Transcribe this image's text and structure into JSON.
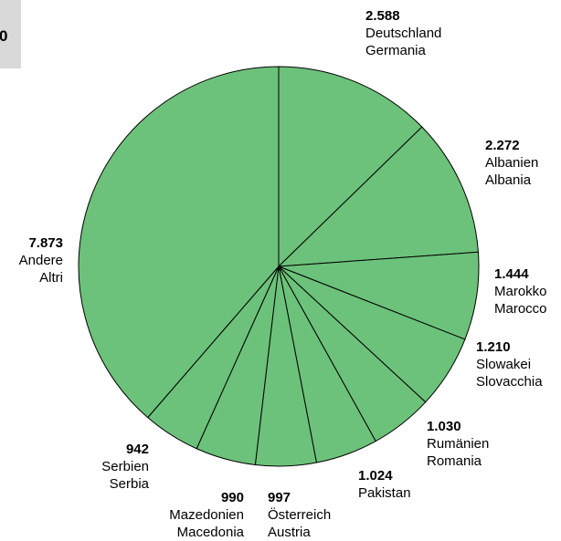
{
  "corner_badge": "0",
  "chart_data": {
    "type": "pie",
    "title": "",
    "start_angle_deg": 0,
    "direction": "clockwise",
    "slice_color": "#6cc27a",
    "stroke_color": "#000000",
    "slices": [
      {
        "value_label": "2.588",
        "value": 2588,
        "label_de": "Deutschland",
        "label_it": "Germania"
      },
      {
        "value_label": "2.272",
        "value": 2272,
        "label_de": "Albanien",
        "label_it": "Albania"
      },
      {
        "value_label": "1.444",
        "value": 1444,
        "label_de": "Marokko",
        "label_it": "Marocco"
      },
      {
        "value_label": "1.210",
        "value": 1210,
        "label_de": "Slowakei",
        "label_it": "Slovacchia"
      },
      {
        "value_label": "1.030",
        "value": 1030,
        "label_de": "Rumänien",
        "label_it": "Romania"
      },
      {
        "value_label": "1.024",
        "value": 1024,
        "label_de": "Pakistan",
        "label_it": ""
      },
      {
        "value_label": "997",
        "value": 997,
        "label_de": "Österreich",
        "label_it": "Austria"
      },
      {
        "value_label": "990",
        "value": 990,
        "label_de": "Mazedonien",
        "label_it": "Macedonia"
      },
      {
        "value_label": "942",
        "value": 942,
        "label_de": "Serbien",
        "label_it": "Serbia"
      },
      {
        "value_label": "7.873",
        "value": 7873,
        "label_de": "Andere",
        "label_it": "Altri"
      }
    ]
  }
}
